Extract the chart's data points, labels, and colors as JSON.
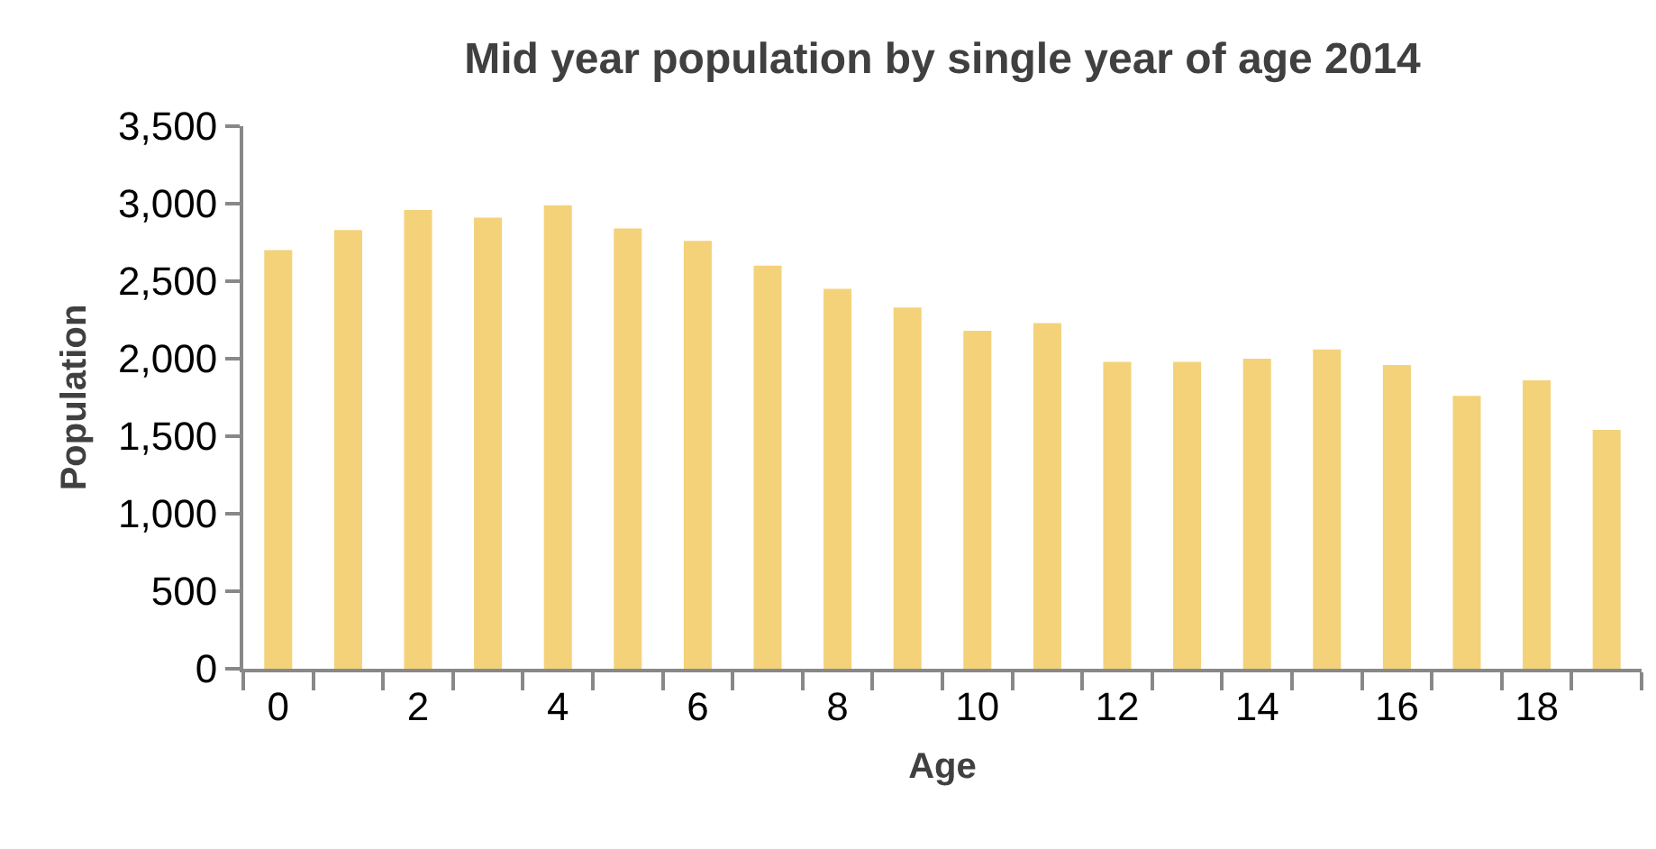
{
  "chart_data": {
    "type": "bar",
    "title": "Mid year population by single year of age 2014",
    "xlabel": "Age",
    "ylabel": "Population",
    "categories": [
      "0",
      null,
      "2",
      null,
      "4",
      null,
      "6",
      null,
      "8",
      null,
      "10",
      null,
      "12",
      null,
      "14",
      null,
      "16",
      null,
      "18",
      null
    ],
    "values": [
      2700,
      2830,
      2960,
      2910,
      2990,
      2840,
      2760,
      2600,
      2450,
      2330,
      2180,
      2230,
      1980,
      1980,
      2000,
      2060,
      1960,
      1760,
      1860,
      1540
    ],
    "color": "#f4d27a",
    "ylim": [
      0,
      3500
    ],
    "yticks": [
      {
        "value": 0,
        "label": "0"
      },
      {
        "value": 500,
        "label": "500"
      },
      {
        "value": 1000,
        "label": "1,000"
      },
      {
        "value": 1500,
        "label": "1,500"
      },
      {
        "value": 2000,
        "label": "2,000"
      },
      {
        "value": 2500,
        "label": "2,500"
      },
      {
        "value": 3000,
        "label": "3,000"
      },
      {
        "value": 3500,
        "label": "3,500"
      }
    ],
    "grid": false,
    "legend": false
  }
}
